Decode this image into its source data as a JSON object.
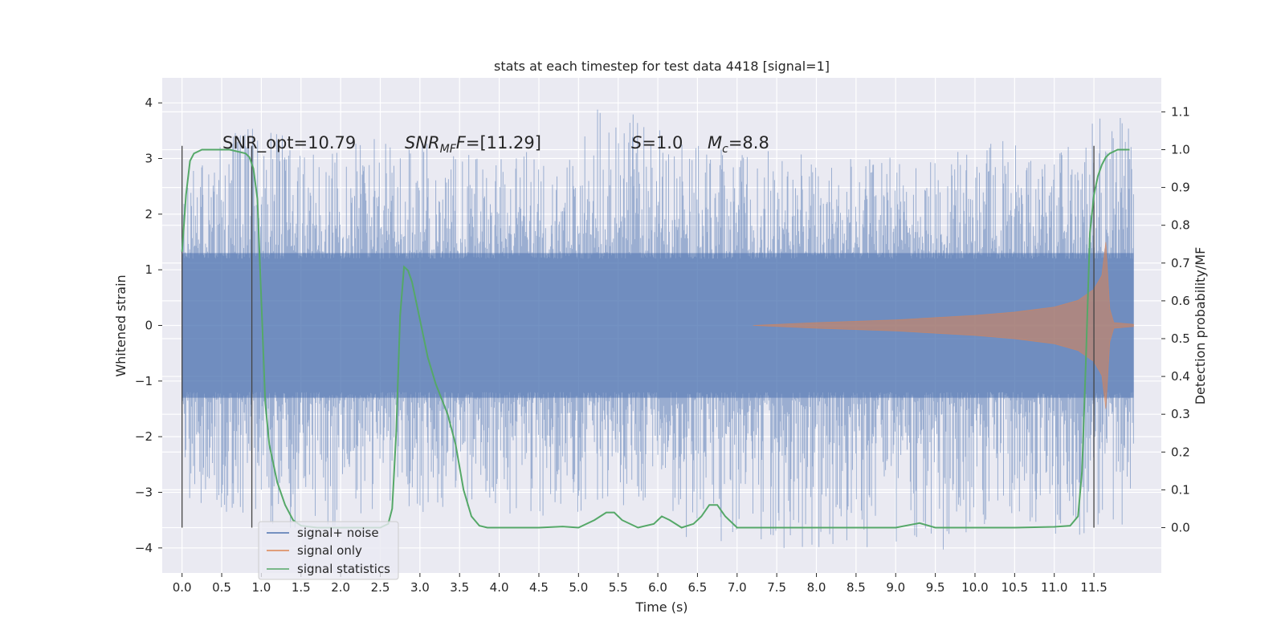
{
  "chart_data": {
    "type": "line",
    "title": "stats at each timestep for test data 4418 [signal=1]",
    "xlabel": "Time (s)",
    "ylabel": "Whitened strain",
    "y2label": "Detection probability/MF",
    "xlim": [
      -0.25,
      12.35
    ],
    "ylim": [
      -4.45,
      4.45
    ],
    "y2lim": [
      -0.12,
      1.19
    ],
    "x_ticks": [
      0.0,
      0.5,
      1.0,
      1.5,
      2.0,
      2.5,
      3.0,
      3.5,
      4.0,
      4.5,
      5.0,
      5.5,
      6.0,
      6.5,
      7.0,
      7.5,
      8.0,
      8.5,
      9.0,
      9.5,
      10.0,
      10.5,
      11.0,
      11.5
    ],
    "x_tick_labels": [
      "0.0",
      "0.5",
      "1.0",
      "1.5",
      "2.0",
      "2.5",
      "3.0",
      "3.5",
      "4.0",
      "4.5",
      "5.0",
      "5.5",
      "6.0",
      "6.5",
      "7.0",
      "7.5",
      "8.0",
      "8.5",
      "9.0",
      "9.5",
      "10.0",
      "10.5",
      "11.0",
      "11.5"
    ],
    "y_ticks": [
      -4,
      -3,
      -2,
      -1,
      0,
      1,
      2,
      3,
      4
    ],
    "y_tick_labels": [
      "−4",
      "−3",
      "−2",
      "−1",
      "0",
      "1",
      "2",
      "3",
      "4"
    ],
    "y2_ticks": [
      0.0,
      0.1,
      0.2,
      0.3,
      0.4,
      0.5,
      0.6,
      0.7,
      0.8,
      0.9,
      1.0,
      1.1
    ],
    "y2_tick_labels": [
      "0.0",
      "0.1",
      "0.2",
      "0.3",
      "0.4",
      "0.5",
      "0.6",
      "0.7",
      "0.8",
      "0.9",
      "1.0",
      "1.1"
    ],
    "grid": true,
    "legend_position": "lower-left",
    "annotations": {
      "snr_opt": "SNR_opt=10.79",
      "snr_mf_main": "SNR",
      "snr_mf_sub": "MF",
      "snr_mf_value": "=[11.29]",
      "s_main": "S",
      "s_value": "=1.0",
      "mc_main": "M",
      "mc_sub": "c",
      "mc_value": "=8.8"
    },
    "vertical_markers_x": [
      0.0,
      0.88,
      11.5
    ],
    "series": [
      {
        "name": "signal+ noise",
        "color": "#4c72b0",
        "axis": "left",
        "x_range": [
          0.0,
          12.0
        ],
        "envelope": [
          {
            "x": 0.0,
            "peak": 2.6,
            "trough": -3.2
          },
          {
            "x": 1.0,
            "peak": 3.9,
            "trough": -3.5
          },
          {
            "x": 1.6,
            "peak": 3.1,
            "trough": -3.8
          },
          {
            "x": 2.6,
            "peak": 3.5,
            "trough": -3.2
          },
          {
            "x": 3.0,
            "peak": 3.3,
            "trough": -3.4
          },
          {
            "x": 4.1,
            "peak": 3.2,
            "trough": -3.4
          },
          {
            "x": 4.8,
            "peak": 3.0,
            "trough": -3.5
          },
          {
            "x": 5.35,
            "peak": 4.1,
            "trough": -3.1
          },
          {
            "x": 6.3,
            "peak": 3.3,
            "trough": -3.8
          },
          {
            "x": 7.1,
            "peak": 3.2,
            "trough": -4.0
          },
          {
            "x": 9.5,
            "peak": 3.0,
            "trough": -4.1
          },
          {
            "x": 10.5,
            "peak": 3.5,
            "trough": -3.4
          },
          {
            "x": 11.0,
            "peak": 3.0,
            "trough": -3.9
          },
          {
            "x": 11.8,
            "peak": 4.05,
            "trough": -3.6
          }
        ]
      },
      {
        "name": "signal only",
        "color": "#dd8452",
        "axis": "left",
        "envelope": [
          {
            "x": 7.2,
            "amplitude": 0.0
          },
          {
            "x": 8.0,
            "amplitude": 0.05
          },
          {
            "x": 9.0,
            "amplitude": 0.1
          },
          {
            "x": 10.0,
            "amplitude": 0.18
          },
          {
            "x": 10.5,
            "amplitude": 0.24
          },
          {
            "x": 11.0,
            "amplitude": 0.33
          },
          {
            "x": 11.3,
            "amplitude": 0.45
          },
          {
            "x": 11.5,
            "amplitude": 0.65
          },
          {
            "x": 11.6,
            "amplitude": 0.9
          },
          {
            "x": 11.65,
            "amplitude": 1.5
          },
          {
            "x": 11.7,
            "amplitude": 0.3
          },
          {
            "x": 11.75,
            "amplitude": 0.05
          },
          {
            "x": 12.0,
            "amplitude": 0.02
          }
        ]
      },
      {
        "name": "signal statistics",
        "color": "#55a868",
        "axis": "right",
        "x": [
          0.0,
          0.05,
          0.1,
          0.15,
          0.25,
          0.4,
          0.6,
          0.8,
          0.85,
          0.9,
          0.95,
          1.0,
          1.05,
          1.1,
          1.2,
          1.3,
          1.4,
          1.5,
          1.7,
          2.0,
          2.3,
          2.5,
          2.6,
          2.65,
          2.7,
          2.75,
          2.8,
          2.85,
          2.9,
          3.0,
          3.1,
          3.2,
          3.35,
          3.45,
          3.55,
          3.65,
          3.75,
          3.85,
          4.0,
          4.5,
          4.8,
          5.0,
          5.2,
          5.35,
          5.45,
          5.55,
          5.75,
          5.95,
          6.05,
          6.15,
          6.3,
          6.45,
          6.55,
          6.65,
          6.75,
          6.85,
          7.0,
          7.3,
          8.0,
          9.0,
          9.2,
          9.3,
          9.5,
          10.0,
          10.5,
          11.0,
          11.2,
          11.3,
          11.35,
          11.4,
          11.45,
          11.5,
          11.55,
          11.6,
          11.65,
          11.7,
          11.8,
          11.9,
          11.95
        ],
        "values": [
          0.73,
          0.88,
          0.97,
          0.99,
          1.0,
          1.0,
          1.0,
          0.99,
          0.98,
          0.95,
          0.87,
          0.6,
          0.33,
          0.22,
          0.12,
          0.06,
          0.02,
          0.005,
          0.0,
          0.0,
          0.0,
          0.0,
          0.01,
          0.05,
          0.25,
          0.56,
          0.69,
          0.68,
          0.65,
          0.55,
          0.45,
          0.38,
          0.3,
          0.22,
          0.1,
          0.03,
          0.005,
          0.0,
          0.0,
          0.0,
          0.003,
          0.0,
          0.02,
          0.04,
          0.04,
          0.02,
          0.0,
          0.01,
          0.03,
          0.02,
          0.0,
          0.01,
          0.03,
          0.06,
          0.06,
          0.03,
          0.0,
          0.0,
          0.0,
          0.0,
          0.008,
          0.012,
          0.0,
          0.0,
          0.0,
          0.002,
          0.005,
          0.03,
          0.15,
          0.45,
          0.78,
          0.88,
          0.93,
          0.96,
          0.98,
          0.99,
          1.0,
          1.0,
          1.0
        ]
      }
    ]
  }
}
